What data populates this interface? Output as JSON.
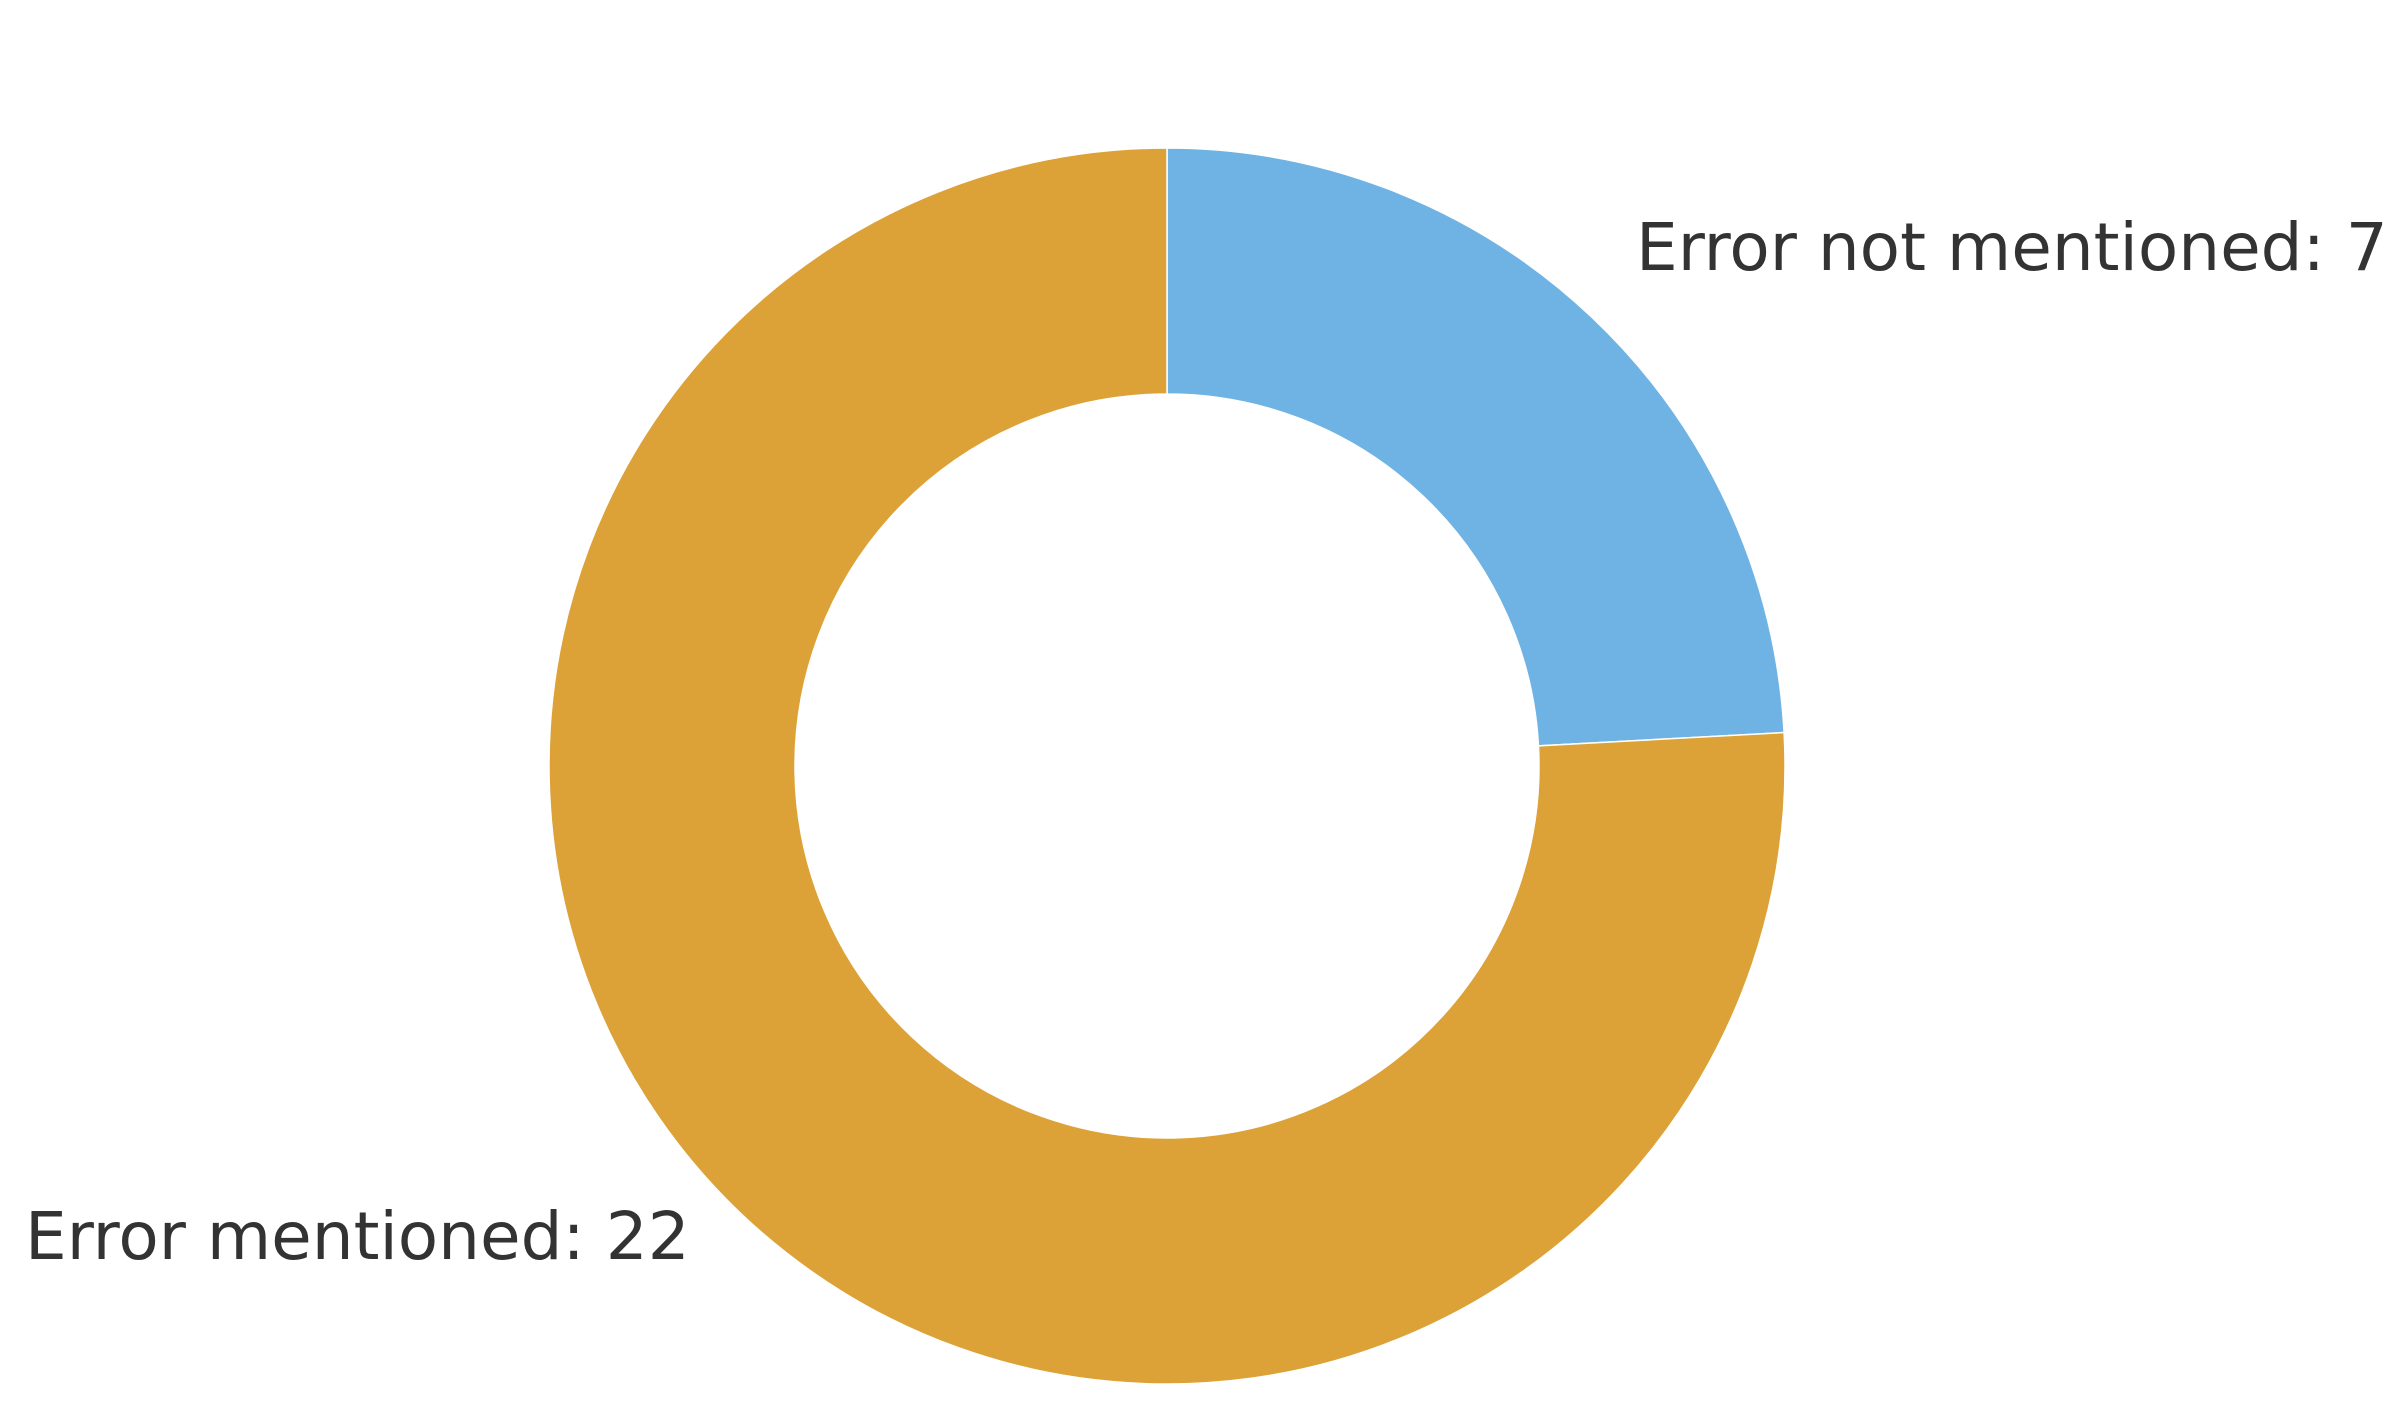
{
  "chart_data": {
    "type": "pie",
    "donut": true,
    "series": [
      {
        "value": 7,
        "color": "#6fb3e4"
      },
      {
        "value": 22,
        "color": "#dca237"
      }
    ],
    "labels": [
      "Error not mentioned: 7",
      "Error mentioned: 22"
    ],
    "start": "top",
    "direction": "clockwise"
  }
}
